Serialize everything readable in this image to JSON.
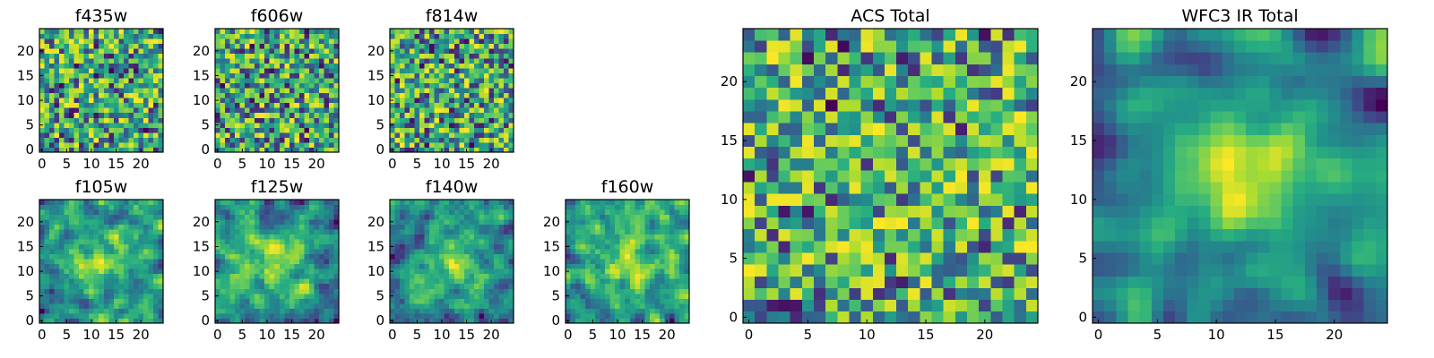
{
  "chart_data": [
    {
      "type": "heatmap",
      "title": "f435w",
      "size": 25,
      "xticks": [
        0,
        5,
        10,
        15,
        20
      ],
      "yticks": [
        0,
        5,
        10,
        15,
        20
      ],
      "colormap": "viridis",
      "seed": 11,
      "smooth": 0,
      "contrast": 0.7
    },
    {
      "type": "heatmap",
      "title": "f606w",
      "size": 25,
      "xticks": [
        0,
        5,
        10,
        15,
        20
      ],
      "yticks": [
        0,
        5,
        10,
        15,
        20
      ],
      "colormap": "viridis",
      "seed": 23,
      "smooth": 0,
      "contrast": 0.7
    },
    {
      "type": "heatmap",
      "title": "f814w",
      "size": 25,
      "xticks": [
        0,
        5,
        10,
        15,
        20
      ],
      "yticks": [
        0,
        5,
        10,
        15,
        20
      ],
      "colormap": "viridis",
      "seed": 37,
      "smooth": 0,
      "contrast": 0.7
    },
    {
      "type": "heatmap",
      "title": "f105w",
      "size": 25,
      "xticks": [
        0,
        5,
        10,
        15,
        20
      ],
      "yticks": [
        0,
        5,
        10,
        15,
        20
      ],
      "colormap": "viridis",
      "seed": 41,
      "smooth": 1,
      "contrast": 0.8
    },
    {
      "type": "heatmap",
      "title": "f125w",
      "size": 25,
      "xticks": [
        0,
        5,
        10,
        15,
        20
      ],
      "yticks": [
        0,
        5,
        10,
        15,
        20
      ],
      "colormap": "viridis",
      "seed": 53,
      "smooth": 1,
      "contrast": 0.8
    },
    {
      "type": "heatmap",
      "title": "f140w",
      "size": 25,
      "xticks": [
        0,
        5,
        10,
        15,
        20
      ],
      "yticks": [
        0,
        5,
        10,
        15,
        20
      ],
      "colormap": "viridis",
      "seed": 67,
      "smooth": 1,
      "contrast": 0.8
    },
    {
      "type": "heatmap",
      "title": "f160w",
      "size": 25,
      "xticks": [
        0,
        5,
        10,
        15,
        20
      ],
      "yticks": [
        0,
        5,
        10,
        15,
        20
      ],
      "colormap": "viridis",
      "seed": 79,
      "smooth": 1,
      "contrast": 0.8
    },
    {
      "type": "heatmap",
      "title": "ACS Total",
      "size": 25,
      "xticks": [
        0,
        5,
        10,
        15,
        20
      ],
      "yticks": [
        0,
        5,
        10,
        15,
        20
      ],
      "colormap": "viridis",
      "seed": 97,
      "smooth": 0,
      "contrast": 0.6
    },
    {
      "type": "heatmap",
      "title": "WFC3 IR Total",
      "size": 25,
      "xticks": [
        0,
        5,
        10,
        15,
        20
      ],
      "yticks": [
        0,
        5,
        10,
        15,
        20
      ],
      "colormap": "viridis",
      "seed": 113,
      "smooth": 2,
      "contrast": 0.9
    }
  ],
  "colors": {
    "viridis_low": "#440154",
    "viridis_mid": "#21918c",
    "viridis_high": "#fde725"
  }
}
